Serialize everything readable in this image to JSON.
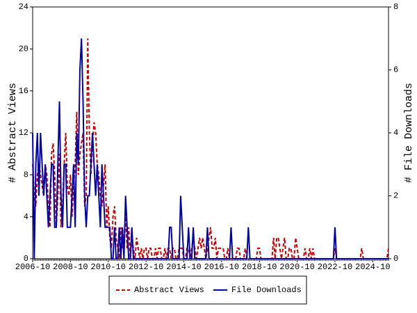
{
  "chart_data": {
    "type": "line",
    "y_label": "# Abstract Views",
    "y2_label": "# File Downloads",
    "categories": [
      "2006-10",
      null,
      null,
      null,
      null,
      null,
      null,
      null,
      null,
      null,
      null,
      null,
      null,
      null,
      null,
      null,
      null,
      null,
      null,
      null,
      null,
      null,
      null,
      null,
      "2008-10",
      null,
      null,
      null,
      null,
      null,
      null,
      null,
      null,
      null,
      null,
      null,
      null,
      null,
      null,
      null,
      null,
      null,
      null,
      null,
      null,
      null,
      null,
      null,
      "2010-10",
      null,
      null,
      null,
      null,
      null,
      null,
      null,
      null,
      null,
      null,
      null,
      null,
      null,
      null,
      null,
      null,
      null,
      null,
      null,
      null,
      null,
      null,
      null,
      "2012-10",
      null,
      null,
      null,
      null,
      null,
      null,
      null,
      null,
      null,
      null,
      null,
      null,
      null,
      null,
      null,
      null,
      null,
      null,
      null,
      null,
      null,
      null,
      null,
      "2014-10",
      null,
      null,
      null,
      null,
      null,
      null,
      null,
      null,
      null,
      null,
      null,
      null,
      null,
      null,
      null,
      null,
      null,
      null,
      null,
      null,
      null,
      null,
      null,
      "2016-10",
      null,
      null,
      null,
      null,
      null,
      null,
      null,
      null,
      null,
      null,
      null,
      null,
      null,
      null,
      null,
      null,
      null,
      null,
      null,
      null,
      null,
      null,
      null,
      "2018-10",
      null,
      null,
      null,
      null,
      null,
      null,
      null,
      null,
      null,
      null,
      null,
      null,
      null,
      null,
      null,
      null,
      null,
      null,
      null,
      null,
      null,
      null,
      null,
      "2020-10",
      null,
      null,
      null,
      null,
      null,
      null,
      null,
      null,
      null,
      null,
      null,
      null,
      null,
      null,
      null,
      null,
      null,
      null,
      null,
      null,
      null,
      null,
      null,
      "2022-10",
      null,
      null,
      null,
      null,
      null,
      null,
      null,
      null,
      null,
      null,
      null,
      null,
      null,
      null,
      null,
      null,
      null,
      null,
      null,
      null,
      null,
      null,
      null,
      "2024-10",
      null,
      null,
      null,
      null,
      null,
      null,
      null,
      null,
      null,
      null
    ],
    "series": [
      {
        "name": "Abstract Views",
        "color": "#cc0000",
        "dashed": true,
        "values": [
          9,
          6,
          5,
          8,
          9,
          8,
          7,
          6,
          9,
          8,
          5,
          3,
          10,
          11,
          8,
          3,
          6,
          10,
          3,
          5,
          9,
          12,
          7,
          6,
          8,
          4,
          7,
          9,
          14,
          8,
          10,
          11,
          12,
          5,
          6,
          21,
          12,
          8,
          11,
          13,
          12,
          9,
          8,
          6,
          5,
          7,
          9,
          3,
          5,
          2,
          1,
          4,
          5,
          2,
          1,
          0,
          3,
          1,
          2,
          4,
          1,
          3,
          0,
          2,
          1,
          0,
          2,
          1,
          0,
          1,
          0,
          1,
          1,
          0,
          1,
          1,
          0,
          0,
          1,
          0,
          1,
          1,
          0,
          0,
          1,
          0,
          1,
          1,
          0,
          1,
          1,
          0,
          0,
          1,
          1,
          1,
          0,
          0,
          1,
          1,
          0,
          1,
          2,
          1,
          0,
          1,
          2,
          1,
          2,
          1,
          0,
          1,
          2,
          3,
          1,
          1,
          2,
          0,
          1,
          1,
          1,
          1,
          0,
          0,
          1,
          0,
          0,
          0,
          0,
          0,
          1,
          1,
          0,
          0,
          0,
          1,
          0,
          0,
          0,
          0,
          0,
          0,
          0,
          1,
          1,
          0,
          0,
          0,
          0,
          0,
          0,
          0,
          0,
          2,
          0,
          2,
          2,
          1,
          0,
          1,
          2,
          0,
          0,
          1,
          1,
          0,
          0,
          2,
          1,
          0,
          0,
          0,
          0,
          1,
          0,
          0,
          1,
          0,
          1,
          0,
          0,
          0,
          0,
          0,
          0,
          0,
          0,
          0,
          0,
          0,
          0,
          0,
          1,
          0,
          0,
          0,
          0,
          0,
          0,
          0,
          0,
          0,
          0,
          0,
          0,
          0,
          0,
          0,
          0,
          1,
          0,
          0,
          0,
          0,
          0,
          0,
          0,
          0,
          0,
          0,
          0,
          0,
          0,
          0,
          0,
          0,
          1
        ]
      },
      {
        "name": "File Downloads",
        "color": "#0000aa",
        "axis": "y2",
        "values": [
          4,
          0,
          3,
          4,
          2,
          4,
          3,
          2,
          3,
          2,
          1,
          2,
          3,
          3,
          1,
          1,
          3,
          5,
          2,
          1,
          3,
          3,
          1,
          1,
          1,
          2,
          3,
          1,
          4,
          3,
          6,
          7,
          5,
          2,
          1,
          2,
          2,
          3,
          4,
          3,
          2,
          3,
          2,
          1,
          3,
          2,
          1,
          1,
          1,
          1,
          0,
          0,
          1,
          0,
          0,
          1,
          0,
          1,
          0,
          2,
          1,
          0,
          0,
          1,
          0,
          0,
          0,
          0,
          0,
          0,
          0,
          0,
          0,
          0,
          0,
          0,
          0,
          0,
          0,
          0,
          0,
          0,
          0,
          0,
          0,
          0,
          0,
          1,
          1,
          0,
          0,
          0,
          0,
          0,
          2,
          1,
          0,
          0,
          0,
          1,
          0,
          0,
          1,
          0,
          0,
          0,
          0,
          0,
          0,
          0,
          0,
          1,
          0,
          0,
          0,
          0,
          0,
          0,
          0,
          0,
          0,
          0,
          0,
          0,
          0,
          0,
          1,
          0,
          0,
          0,
          0,
          0,
          0,
          0,
          0,
          0,
          0,
          1,
          0,
          0,
          0,
          0,
          0,
          0,
          0,
          0,
          0,
          0,
          0,
          0,
          0,
          0,
          0,
          0,
          0,
          0,
          0,
          0,
          0,
          0,
          0,
          0,
          0,
          0,
          0,
          0,
          0,
          0,
          0,
          0,
          0,
          0,
          0,
          0,
          0,
          0,
          0,
          0,
          0,
          0,
          0,
          0,
          0,
          0,
          0,
          0,
          0,
          0,
          0,
          0,
          0,
          0,
          1,
          0,
          0,
          0,
          0,
          0,
          0,
          0,
          0,
          0,
          0,
          0,
          0,
          0,
          0,
          0,
          0,
          0,
          0,
          0,
          0,
          0,
          0,
          0,
          0,
          0,
          0,
          0,
          0,
          0,
          0,
          0,
          0,
          0,
          0
        ]
      }
    ],
    "ylim": [
      0,
      24
    ],
    "yticks": [
      0,
      4,
      8,
      12,
      16,
      20,
      24
    ],
    "y2lim": [
      0,
      8
    ],
    "y2ticks": [
      0,
      2,
      4,
      6,
      8
    ],
    "legend": "bottom"
  }
}
